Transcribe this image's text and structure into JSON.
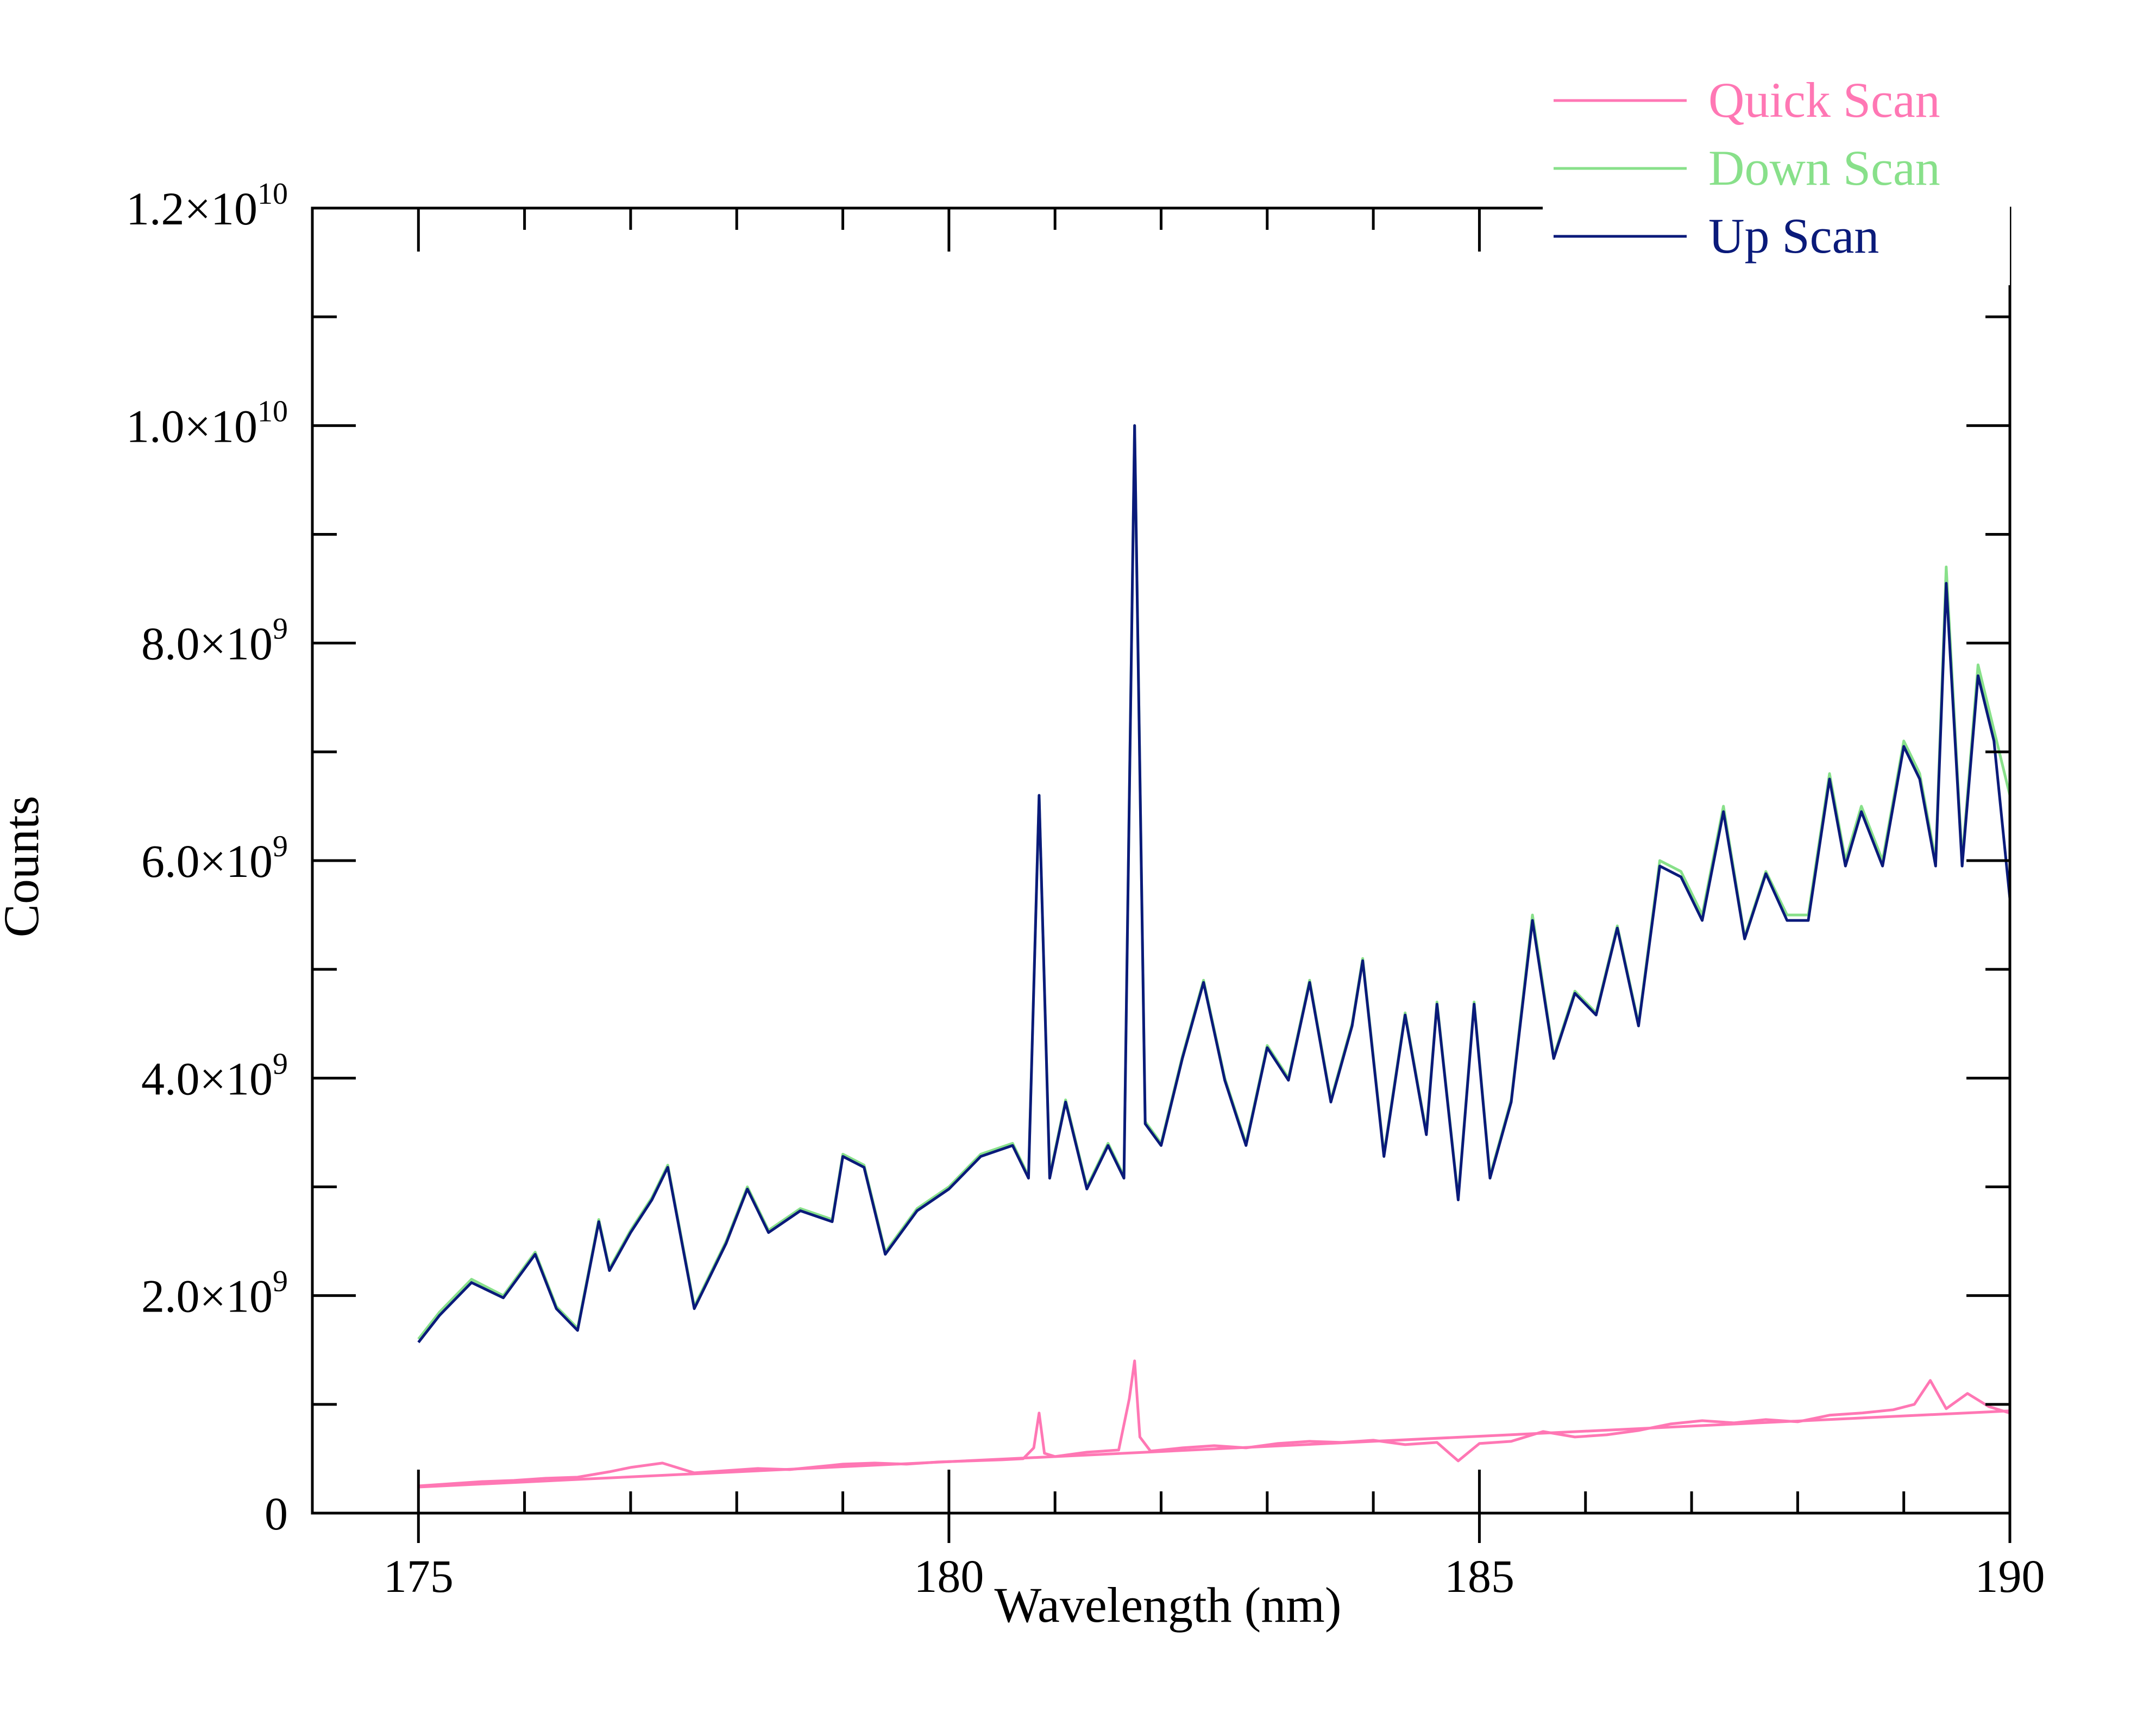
{
  "chart_data": {
    "type": "line",
    "title": "",
    "xlabel": "Wavelength (nm)",
    "ylabel": "Counts",
    "xlim": [
      174,
      190
    ],
    "ylim": [
      0,
      12000000000
    ],
    "x_ticks": [
      {
        "value": 175,
        "label": "175"
      },
      {
        "value": 180,
        "label": "180"
      },
      {
        "value": 185,
        "label": "185"
      },
      {
        "value": 190,
        "label": "190"
      }
    ],
    "y_ticks": [
      {
        "value": 0,
        "mant": "0",
        "exp": ""
      },
      {
        "value": 2000000000,
        "mant": "2.0×10",
        "exp": "9"
      },
      {
        "value": 4000000000,
        "mant": "4.0×10",
        "exp": "9"
      },
      {
        "value": 6000000000,
        "mant": "6.0×10",
        "exp": "9"
      },
      {
        "value": 8000000000,
        "mant": "8.0×10",
        "exp": "9"
      },
      {
        "value": 10000000000,
        "mant": "1.0×10",
        "exp": "10"
      },
      {
        "value": 12000000000,
        "mant": "1.2×10",
        "exp": "10"
      }
    ],
    "grid": false,
    "legend_position": "top-right",
    "series": [
      {
        "name": "Quick Scan",
        "color": "#ff77b4",
        "x": [
          175.0,
          175.3,
          175.6,
          175.9,
          176.2,
          176.5,
          176.8,
          177.0,
          177.3,
          177.6,
          177.9,
          178.2,
          178.5,
          178.8,
          179.0,
          179.3,
          179.6,
          179.9,
          180.2,
          180.5,
          180.7,
          180.8,
          180.85,
          180.9,
          181.0,
          181.3,
          181.6,
          181.7,
          181.75,
          181.8,
          181.9,
          182.2,
          182.5,
          182.8,
          183.1,
          183.4,
          183.7,
          184.0,
          184.3,
          184.6,
          184.8,
          185.0,
          185.3,
          185.6,
          185.9,
          186.2,
          186.5,
          186.8,
          187.1,
          187.4,
          187.7,
          188.0,
          188.3,
          188.6,
          188.9,
          189.1,
          189.25,
          189.4,
          189.6,
          189.8,
          190.0
        ],
        "values": [
          250000000,
          270000000,
          290000000,
          300000000,
          320000000,
          330000000,
          380000000,
          420000000,
          460000000,
          370000000,
          390000000,
          410000000,
          400000000,
          430000000,
          450000000,
          460000000,
          450000000,
          470000000,
          480000000,
          490000000,
          500000000,
          600000000,
          920000000,
          550000000,
          520000000,
          560000000,
          580000000,
          1050000000,
          1400000000,
          700000000,
          570000000,
          600000000,
          620000000,
          600000000,
          640000000,
          660000000,
          650000000,
          670000000,
          630000000,
          650000000,
          480000000,
          640000000,
          660000000,
          750000000,
          700000000,
          720000000,
          760000000,
          820000000,
          850000000,
          830000000,
          860000000,
          840000000,
          900000000,
          920000000,
          950000000,
          1000000000,
          1220000000,
          960000000,
          1100000000,
          980000000,
          920000000
        ]
      },
      {
        "name": "",
        "color": "#ff77b4",
        "x": [
          175.0,
          190.0
        ],
        "values": [
          240000000,
          940000000
        ]
      },
      {
        "name": "Down Scan",
        "color": "#88e08a",
        "x": [
          175.0,
          175.2,
          175.5,
          175.8,
          176.1,
          176.3,
          176.5,
          176.7,
          176.8,
          177.0,
          177.2,
          177.35,
          177.6,
          177.9,
          178.1,
          178.3,
          178.6,
          178.9,
          179.0,
          179.2,
          179.4,
          179.7,
          180.0,
          180.3,
          180.6,
          180.75,
          180.85,
          180.95,
          181.1,
          181.3,
          181.5,
          181.65,
          181.75,
          181.85,
          182.0,
          182.2,
          182.4,
          182.6,
          182.8,
          183.0,
          183.2,
          183.4,
          183.6,
          183.8,
          183.9,
          184.1,
          184.3,
          184.5,
          184.6,
          184.8,
          184.95,
          185.1,
          185.3,
          185.5,
          185.7,
          185.9,
          186.1,
          186.3,
          186.5,
          186.7,
          186.9,
          187.1,
          187.3,
          187.5,
          187.7,
          187.9,
          188.1,
          188.3,
          188.45,
          188.6,
          188.8,
          189.0,
          189.15,
          189.3,
          189.4,
          189.55,
          189.7,
          189.85,
          190.0
        ],
        "values": [
          1600000000,
          1850000000,
          2150000000,
          2000000000,
          2400000000,
          1900000000,
          1700000000,
          2700000000,
          2250000000,
          2600000000,
          2900000000,
          3200000000,
          1900000000,
          2500000000,
          3000000000,
          2600000000,
          2800000000,
          2700000000,
          3300000000,
          3200000000,
          2400000000,
          2800000000,
          3000000000,
          3300000000,
          3400000000,
          3100000000,
          6600000000,
          3100000000,
          3800000000,
          3000000000,
          3400000000,
          3100000000,
          10000000000,
          3600000000,
          3400000000,
          4200000000,
          4900000000,
          4000000000,
          3400000000,
          4300000000,
          4000000000,
          4900000000,
          3800000000,
          4500000000,
          5100000000,
          3300000000,
          4600000000,
          3500000000,
          4700000000,
          2900000000,
          4700000000,
          3100000000,
          3800000000,
          5500000000,
          4200000000,
          4800000000,
          4600000000,
          5400000000,
          4500000000,
          6000000000,
          5900000000,
          5500000000,
          6500000000,
          5300000000,
          5900000000,
          5500000000,
          5500000000,
          6800000000,
          6000000000,
          6500000000,
          6000000000,
          7100000000,
          6800000000,
          6000000000,
          8700000000,
          6000000000,
          7800000000,
          7200000000,
          6600000000
        ]
      },
      {
        "name": "Up Scan",
        "color": "#0a1a7a",
        "x": [
          175.0,
          175.2,
          175.5,
          175.8,
          176.1,
          176.3,
          176.5,
          176.7,
          176.8,
          177.0,
          177.2,
          177.35,
          177.6,
          177.9,
          178.1,
          178.3,
          178.6,
          178.9,
          179.0,
          179.2,
          179.4,
          179.7,
          180.0,
          180.3,
          180.6,
          180.75,
          180.85,
          180.95,
          181.1,
          181.3,
          181.5,
          181.65,
          181.75,
          181.85,
          182.0,
          182.2,
          182.4,
          182.6,
          182.8,
          183.0,
          183.2,
          183.4,
          183.6,
          183.8,
          183.9,
          184.1,
          184.3,
          184.5,
          184.6,
          184.8,
          184.95,
          185.1,
          185.3,
          185.5,
          185.7,
          185.9,
          186.1,
          186.3,
          186.5,
          186.7,
          186.9,
          187.1,
          187.3,
          187.5,
          187.7,
          187.9,
          188.1,
          188.3,
          188.45,
          188.6,
          188.8,
          189.0,
          189.15,
          189.3,
          189.4,
          189.55,
          189.7,
          189.85,
          190.0
        ],
        "values": [
          1570000000,
          1820000000,
          2120000000,
          1980000000,
          2380000000,
          1880000000,
          1680000000,
          2680000000,
          2230000000,
          2580000000,
          2880000000,
          3180000000,
          1880000000,
          2480000000,
          2980000000,
          2580000000,
          2780000000,
          2680000000,
          3280000000,
          3180000000,
          2380000000,
          2780000000,
          2980000000,
          3280000000,
          3380000000,
          3080000000,
          6600000000,
          3080000000,
          3780000000,
          2980000000,
          3380000000,
          3080000000,
          10000000000,
          3580000000,
          3380000000,
          4180000000,
          4880000000,
          3980000000,
          3380000000,
          4280000000,
          3980000000,
          4880000000,
          3780000000,
          4480000000,
          5080000000,
          3280000000,
          4580000000,
          3480000000,
          4680000000,
          2880000000,
          4680000000,
          3080000000,
          3780000000,
          5450000000,
          4180000000,
          4780000000,
          4580000000,
          5380000000,
          4480000000,
          5950000000,
          5850000000,
          5450000000,
          6450000000,
          5280000000,
          5880000000,
          5450000000,
          5450000000,
          6750000000,
          5950000000,
          6450000000,
          5950000000,
          7050000000,
          6750000000,
          5950000000,
          8550000000,
          5950000000,
          7700000000,
          7100000000,
          5650000000
        ]
      }
    ]
  }
}
